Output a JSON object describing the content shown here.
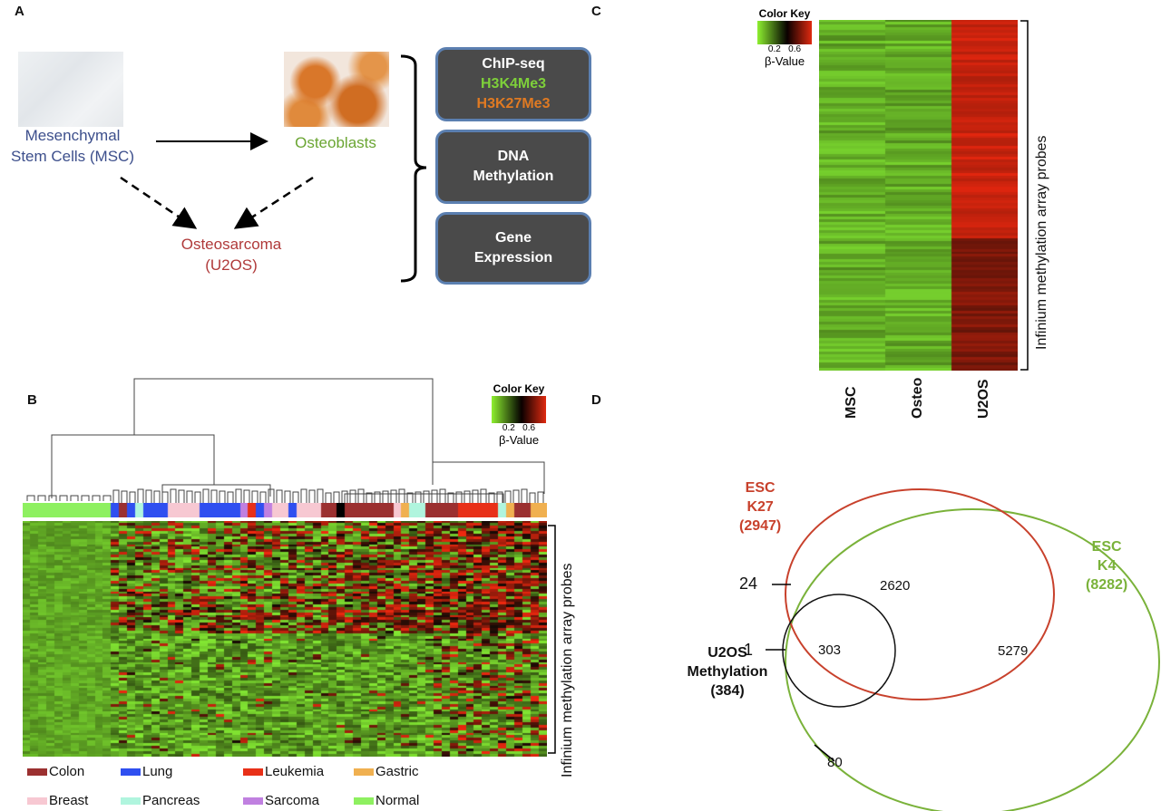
{
  "panelA": {
    "label": "A",
    "msc_label": [
      "Mesenchymal",
      "Stem Cells (MSC)"
    ],
    "osteoblasts_label": "Osteoblasts",
    "osteosarcoma_label": [
      "Osteosarcoma",
      "(U2OS)"
    ],
    "boxes": [
      {
        "lines": [
          "ChIP-seq",
          "H3K4Me3",
          "H3K27Me3"
        ],
        "colors": [
          "#ffffff",
          "#7ed03a",
          "#e07a22"
        ]
      },
      {
        "lines": [
          "DNA",
          "Methylation"
        ]
      },
      {
        "lines": [
          "Gene",
          "Expression"
        ]
      }
    ],
    "colors": {
      "msc": "#3d4f8c",
      "osteo": "#6aa532",
      "osteosarcoma": "#b03a3a"
    }
  },
  "panelB": {
    "label": "B",
    "color_key": {
      "title": "Color Key",
      "ticks": "0.2   0.6",
      "axis": "β-Value"
    },
    "probe_label": "Infinium methylation array probes",
    "legend": [
      {
        "name": "Colon",
        "color": "#9b3030"
      },
      {
        "name": "Lung",
        "color": "#2f4ff0"
      },
      {
        "name": "Leukemia",
        "color": "#e83018"
      },
      {
        "name": "Gastric",
        "color": "#f0b050"
      },
      {
        "name": "Breast",
        "color": "#f7c8d2"
      },
      {
        "name": "Pancreas",
        "color": "#b0f5de"
      },
      {
        "name": "Sarcoma",
        "color": "#c080e0"
      },
      {
        "name": "Normal",
        "color": "#8ef060"
      }
    ],
    "sample_annotation": [
      "Normal",
      "Normal",
      "Normal",
      "Normal",
      "Normal",
      "Normal",
      "Normal",
      "Normal",
      "Normal",
      "Normal",
      "Normal",
      "Lung",
      "Colon",
      "Lung",
      "Pancreas",
      "Lung",
      "Lung",
      "Lung",
      "Breast",
      "Breast",
      "Breast",
      "Breast",
      "Lung",
      "Lung",
      "Lung",
      "Lung",
      "Lung",
      "Sarcoma",
      "Leukemia",
      "Lung",
      "Sarcoma",
      "Breast",
      "Breast",
      "Lung",
      "Breast",
      "Breast",
      "Breast",
      "Colon",
      "Colon",
      "Normal_black",
      "Colon",
      "Colon",
      "Colon",
      "Colon",
      "Colon",
      "Colon",
      "Breast",
      "Gastric",
      "Pancreas",
      "Pancreas",
      "Colon",
      "Colon",
      "Colon",
      "Colon",
      "Leukemia",
      "Leukemia",
      "Leukemia",
      "Leukemia",
      "Leukemia",
      "Pancreas",
      "Gastric",
      "Colon",
      "Colon",
      "Gastric",
      "Gastric"
    ]
  },
  "panelC": {
    "label": "C",
    "color_key": {
      "title": "Color Key",
      "ticks": "0.2   0.6",
      "axis": "β-Value"
    },
    "probe_label": "Infinium methylation array probes",
    "columns": [
      "MSC",
      "Osteo",
      "U2OS"
    ]
  },
  "panelD": {
    "label": "D",
    "esc_k27": {
      "lines": [
        "ESC",
        "K27",
        "(2947)"
      ],
      "color": "#c8412c"
    },
    "esc_k4": {
      "lines": [
        "ESC",
        "K4",
        "(8282)"
      ],
      "color": "#7ab23a"
    },
    "u2os": {
      "lines": [
        "U2OS",
        "Methylation",
        "(384)"
      ]
    },
    "counts": {
      "k27_only": "2620",
      "k4_only": "5279",
      "triple": "303",
      "u2os_k27_only": "24",
      "u2os_only": "1",
      "u2os_k4_only": "80"
    }
  }
}
